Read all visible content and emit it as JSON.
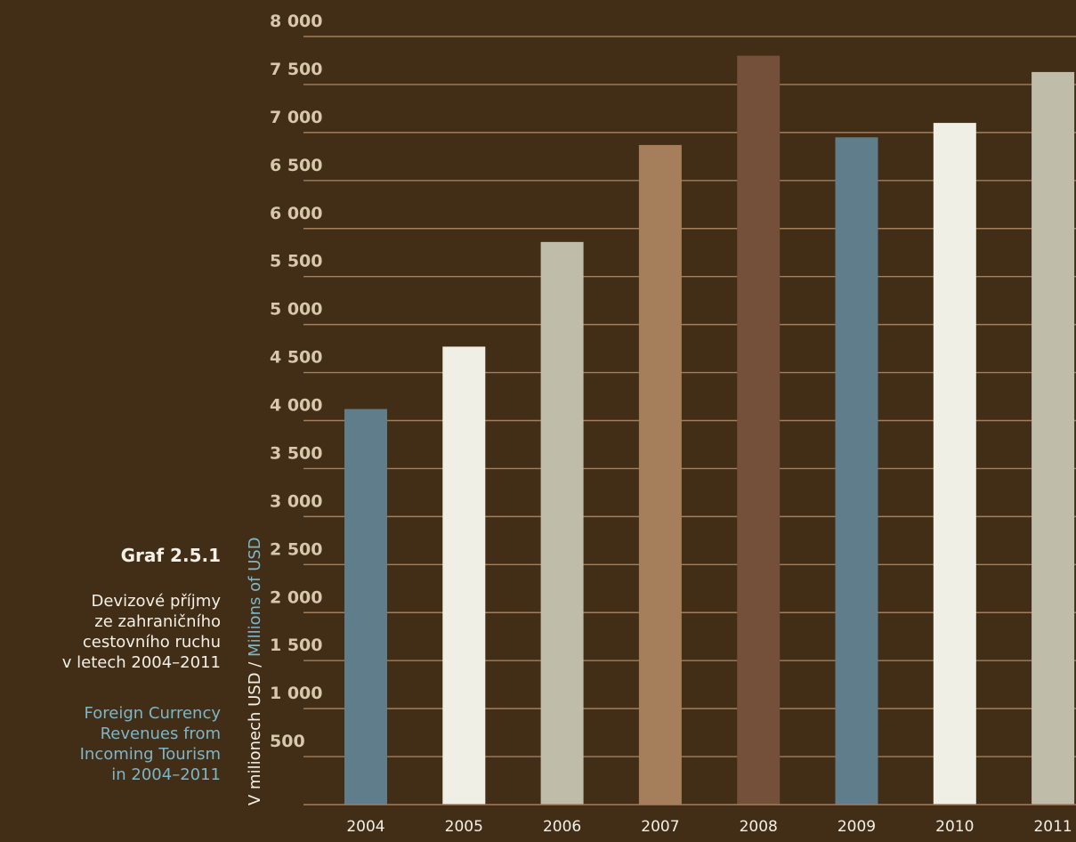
{
  "caption": {
    "label": "Graf 2.5.1",
    "title_cs": [
      "Devizové příjmy",
      "ze zahraničního",
      "cestovního ruchu",
      "v letech 2004–2011"
    ],
    "title_en": [
      "Foreign Currency",
      "Revenues from",
      "Incoming Tourism",
      "in 2004–2011"
    ]
  },
  "chart_data": {
    "type": "bar",
    "categories": [
      "2004",
      "2005",
      "2006",
      "2007",
      "2008",
      "2009",
      "2010",
      "2011"
    ],
    "values": [
      4120,
      4770,
      5860,
      6870,
      7800,
      6950,
      7100,
      7630
    ],
    "bar_colors": [
      "#5f7d8a",
      "#f0efe6",
      "#bfbcaa",
      "#a57e5b",
      "#744f39",
      "#5f7d8a",
      "#f0efe6",
      "#bfbcaa"
    ],
    "ylabel_cs": "V milionech USD / ",
    "ylabel_en": "Millions of USD",
    "yticks": [
      500,
      1000,
      1500,
      2000,
      2500,
      3000,
      3500,
      4000,
      4500,
      5000,
      5500,
      6000,
      6500,
      7000,
      7500,
      8000
    ],
    "ytick_labels": [
      "500",
      "1 000",
      "1 500",
      "2 000",
      "2 500",
      "3 000",
      "3 500",
      "4 000",
      "4 500",
      "5 000",
      "5 500",
      "6 000",
      "6 500",
      "7 000",
      "7 500",
      "8 000"
    ],
    "ylim": [
      0,
      8000
    ],
    "grid": true
  }
}
